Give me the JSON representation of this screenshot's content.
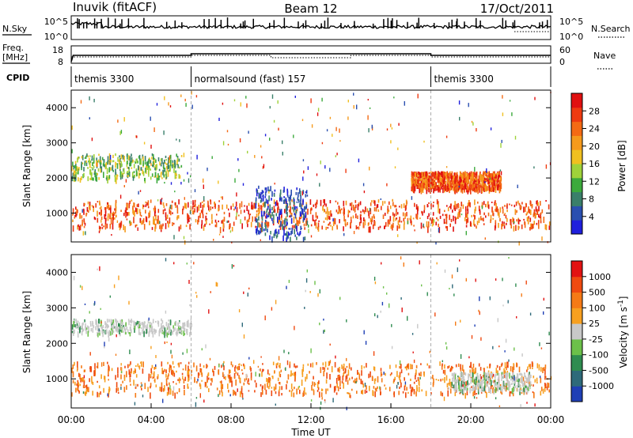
{
  "header": {
    "site": "Inuvik (fitACF)",
    "beam": "Beam 12",
    "date": "17/Oct/2011"
  },
  "noise_panel": {
    "left_label": "N.Sky",
    "right_label": "N.Search",
    "left_ticks": [
      "10^5",
      "10^0"
    ],
    "right_ticks": [
      "10^5",
      "10^0"
    ]
  },
  "freq_panel": {
    "left_label_line1": "Freq.",
    "left_label_line2": "[MHz]",
    "right_label": "Nave",
    "left_ticks": [
      "18",
      "8"
    ],
    "right_ticks": [
      "60",
      "0"
    ]
  },
  "cpid": {
    "label": "CPID",
    "segments": [
      {
        "name": "themis 3300",
        "start_hour": 0
      },
      {
        "name": "normalsound (fast) 157",
        "start_hour": 6
      },
      {
        "name": "themis 3300",
        "start_hour": 18
      }
    ]
  },
  "colors": {
    "power_scale": [
      "#1f1fdc",
      "#2a4fb0",
      "#3a7f6a",
      "#3caa3c",
      "#9fd23a",
      "#f0c020",
      "#f59a1c",
      "#f46a14",
      "#ee3a10",
      "#e01010"
    ],
    "velocity_scale": [
      "#1f3fb5",
      "#2e6a7a",
      "#2f8c50",
      "#6cc04a",
      "#c8c8c8",
      "#f7a020",
      "#f57a16",
      "#ef4a10",
      "#e21212"
    ]
  },
  "chart_data": [
    {
      "type": "heatmap",
      "panel": "power",
      "ylabel": "Slant Range [km]",
      "yticks": [
        "4000",
        "3000",
        "2000",
        "1000"
      ],
      "ylim": [
        180,
        4500
      ],
      "xlim_hours": [
        0,
        24
      ],
      "colorbar": {
        "label": "Power [dB]",
        "ticks": [
          "28",
          "24",
          "20",
          "16",
          "12",
          "8",
          "4"
        ],
        "range": [
          0,
          30
        ]
      },
      "bands": [
        {
          "name": "main echo band",
          "hours": [
            0,
            24
          ],
          "range_km": [
            600,
            1400
          ],
          "level": "strong"
        },
        {
          "name": "upper band",
          "hours": [
            0,
            5.5
          ],
          "range_km": [
            2000,
            2700
          ],
          "level": "moderate"
        },
        {
          "name": "upper band late",
          "hours": [
            17,
            21.5
          ],
          "range_km": [
            1700,
            2200
          ],
          "level": "strong"
        },
        {
          "name": "ground scatter patch",
          "hours": [
            9.2,
            11.8
          ],
          "range_km": [
            300,
            1800
          ],
          "level": "weak"
        }
      ]
    },
    {
      "type": "heatmap",
      "panel": "velocity",
      "ylabel": "Slant Range [km]",
      "yticks": [
        "4000",
        "3000",
        "2000",
        "1000"
      ],
      "ylim": [
        180,
        4500
      ],
      "xlim_hours": [
        0,
        24
      ],
      "xticks": [
        "00:00",
        "04:00",
        "08:00",
        "12:00",
        "16:00",
        "20:00",
        "00:00"
      ],
      "xlabel": "Time UT",
      "colorbar": {
        "label": "Velocity [m s^-1]",
        "ticks": [
          "1000",
          "500",
          "100",
          "25",
          "-25",
          "-100",
          "-500",
          "-1000"
        ]
      },
      "bands": [
        {
          "name": "main echo band",
          "hours": [
            0,
            24
          ],
          "range_km": [
            600,
            1500
          ],
          "level": "away"
        },
        {
          "name": "upper band",
          "hours": [
            0,
            6
          ],
          "range_km": [
            2300,
            2700
          ],
          "level": "near-zero"
        },
        {
          "name": "ground scatter",
          "hours": [
            19,
            23
          ],
          "range_km": [
            700,
            1200
          ],
          "level": "near-zero"
        }
      ]
    }
  ]
}
